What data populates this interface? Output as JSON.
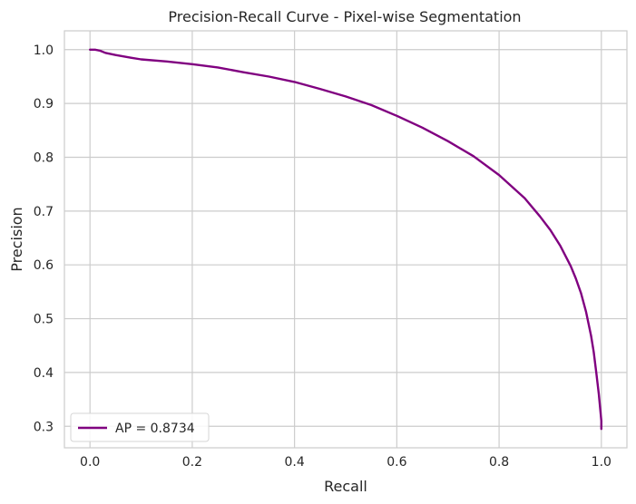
{
  "chart_data": {
    "type": "line",
    "title": "Precision-Recall Curve - Pixel-wise Segmentation",
    "xlabel": "Recall",
    "ylabel": "Precision",
    "xlim": [
      -0.05,
      1.05
    ],
    "ylim": [
      0.26,
      1.035
    ],
    "xticks": [
      0.0,
      0.2,
      0.4,
      0.6,
      0.8,
      1.0
    ],
    "xtick_labels": [
      "0.0",
      "0.2",
      "0.4",
      "0.6",
      "0.8",
      "1.0"
    ],
    "yticks": [
      0.3,
      0.4,
      0.5,
      0.6,
      0.7,
      0.8,
      0.9,
      1.0
    ],
    "ytick_labels": [
      "0.3",
      "0.4",
      "0.5",
      "0.6",
      "0.7",
      "0.8",
      "0.9",
      "1.0"
    ],
    "grid": true,
    "legend_position": "lower-left",
    "series": [
      {
        "name": "AP = 0.8734",
        "color": "#800080",
        "x": [
          0.0,
          0.01,
          0.02,
          0.03,
          0.05,
          0.08,
          0.1,
          0.15,
          0.2,
          0.25,
          0.3,
          0.35,
          0.4,
          0.45,
          0.5,
          0.55,
          0.6,
          0.65,
          0.7,
          0.75,
          0.8,
          0.85,
          0.88,
          0.9,
          0.92,
          0.94,
          0.95,
          0.96,
          0.97,
          0.98,
          0.985,
          0.99,
          0.995,
          0.998,
          1.0,
          1.0
        ],
        "y": [
          1.0,
          1.0,
          0.998,
          0.994,
          0.99,
          0.985,
          0.982,
          0.978,
          0.973,
          0.967,
          0.958,
          0.95,
          0.94,
          0.927,
          0.913,
          0.897,
          0.877,
          0.855,
          0.83,
          0.802,
          0.767,
          0.724,
          0.69,
          0.665,
          0.635,
          0.598,
          0.575,
          0.548,
          0.513,
          0.468,
          0.438,
          0.4,
          0.36,
          0.33,
          0.31,
          0.295
        ]
      }
    ]
  }
}
